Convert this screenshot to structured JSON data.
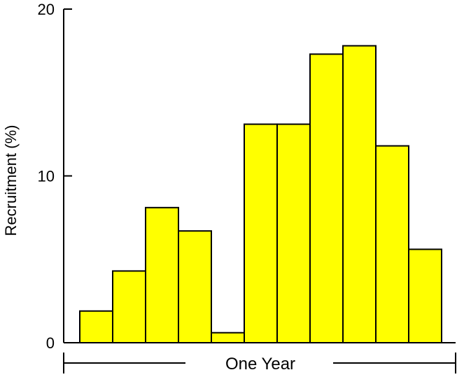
{
  "chart_data": {
    "type": "bar",
    "title": "",
    "ylabel": "Recruitment (%)",
    "xlabel": "",
    "ylim": [
      0,
      20
    ],
    "yticks": [
      0,
      10,
      20
    ],
    "values": [
      1.9,
      4.3,
      8.1,
      6.7,
      0.6,
      13.1,
      13.1,
      17.3,
      17.8,
      11.8,
      5.6
    ],
    "bar_color": "#FFFF00",
    "bar_edge_color": "#000000",
    "grid": false,
    "span_label": "One Year"
  }
}
